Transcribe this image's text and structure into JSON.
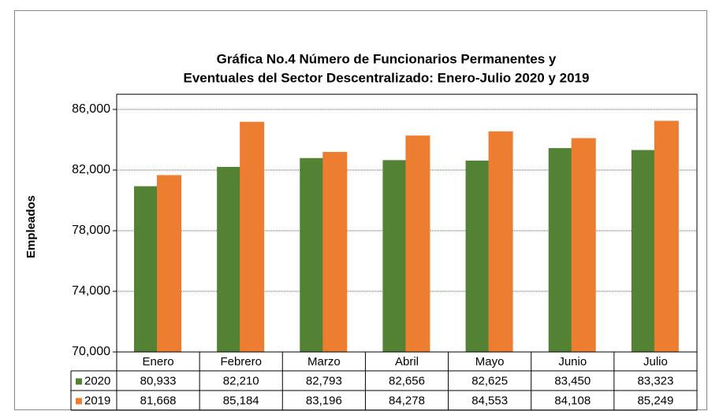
{
  "chart_data": {
    "type": "bar",
    "title": [
      "Gráfica No.4  Número de Funcionarios Permanentes y",
      "Eventuales del Sector Descentralizado: Enero-Julio 2020 y 2019"
    ],
    "ylabel": "Empleados",
    "categories": [
      "Enero",
      "Febrero",
      "Marzo",
      "Abril",
      "Mayo",
      "Junio",
      "Julio"
    ],
    "series": [
      {
        "name": "2020",
        "color": "#548235",
        "values": [
          80933,
          82210,
          82793,
          82656,
          82625,
          83450,
          83323
        ],
        "value_labels": [
          "80,933",
          "82,210",
          "82,793",
          "82,656",
          "82,625",
          "83,450",
          "83,323"
        ]
      },
      {
        "name": "2019",
        "color": "#ed7d31",
        "values": [
          81668,
          85184,
          83196,
          84278,
          84553,
          84108,
          85249
        ],
        "value_labels": [
          "81,668",
          "85,184",
          "83,196",
          "84,278",
          "84,553",
          "84,108",
          "85,249"
        ]
      }
    ],
    "ylim": [
      70000,
      87000
    ],
    "yticks": [
      {
        "value": 70000,
        "label": "70,000"
      },
      {
        "value": 74000,
        "label": "74,000"
      },
      {
        "value": 78000,
        "label": "78,000"
      },
      {
        "value": 82000,
        "label": "82,000"
      },
      {
        "value": 86000,
        "label": "86,000"
      }
    ],
    "grid": true
  }
}
